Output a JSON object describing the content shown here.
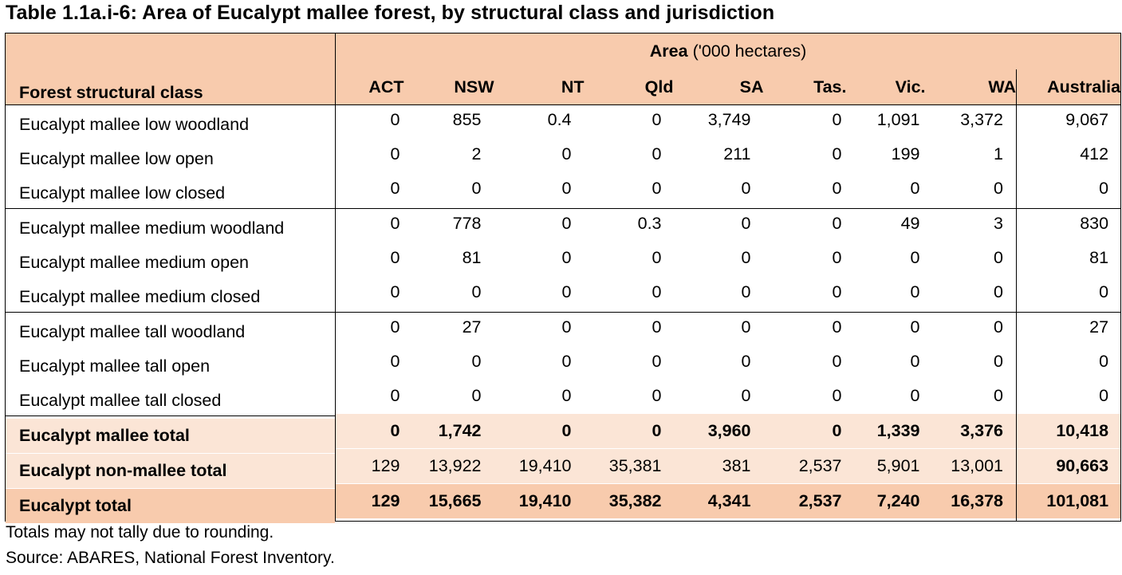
{
  "title": "Table 1.1a.i-6: Area of Eucalypt mallee forest, by structural class and jurisdiction",
  "header": {
    "stub": "Forest structural class",
    "area_bold": "Area",
    "area_rest": " ('000 hectares)",
    "columns": [
      "ACT",
      "NSW",
      "NT",
      "Qld",
      "SA",
      "Tas.",
      "Vic.",
      "WA",
      "Australia"
    ]
  },
  "rows": [
    {
      "label": "Eucalypt mallee low woodland",
      "values": [
        "0",
        "855",
        "0.4",
        "0",
        "3,749",
        "0",
        "1,091",
        "3,372",
        "9,067"
      ]
    },
    {
      "label": "Eucalypt mallee low open",
      "values": [
        "0",
        "2",
        "0",
        "0",
        "211",
        "0",
        "199",
        "1",
        "412"
      ]
    },
    {
      "label": "Eucalypt mallee low closed",
      "values": [
        "0",
        "0",
        "0",
        "0",
        "0",
        "0",
        "0",
        "0",
        "0"
      ]
    },
    {
      "label": "Eucalypt mallee medium woodland",
      "values": [
        "0",
        "778",
        "0",
        "0.3",
        "0",
        "0",
        "49",
        "3",
        "830"
      ]
    },
    {
      "label": "Eucalypt mallee medium open",
      "values": [
        "0",
        "81",
        "0",
        "0",
        "0",
        "0",
        "0",
        "0",
        "81"
      ]
    },
    {
      "label": "Eucalypt mallee medium closed",
      "values": [
        "0",
        "0",
        "0",
        "0",
        "0",
        "0",
        "0",
        "0",
        "0"
      ]
    },
    {
      "label": "Eucalypt mallee tall woodland",
      "values": [
        "0",
        "27",
        "0",
        "0",
        "0",
        "0",
        "0",
        "0",
        "27"
      ]
    },
    {
      "label": "Eucalypt mallee tall open",
      "values": [
        "0",
        "0",
        "0",
        "0",
        "0",
        "0",
        "0",
        "0",
        "0"
      ]
    },
    {
      "label": "Eucalypt mallee tall closed",
      "values": [
        "0",
        "0",
        "0",
        "0",
        "0",
        "0",
        "0",
        "0",
        "0"
      ]
    }
  ],
  "totals": [
    {
      "label": "Eucalypt mallee total",
      "values": [
        "0",
        "1,742",
        "0",
        "0",
        "3,960",
        "0",
        "1,339",
        "3,376",
        "10,418"
      ]
    },
    {
      "label": "Eucalypt non-mallee total",
      "values": [
        "129",
        "13,922",
        "19,410",
        "35,381",
        "381",
        "2,537",
        "5,901",
        "13,001",
        "90,663"
      ]
    },
    {
      "label": "Eucalypt total",
      "values": [
        "129",
        "15,665",
        "19,410",
        "35,382",
        "4,341",
        "2,537",
        "7,240",
        "16,378",
        "101,081"
      ]
    }
  ],
  "notes": {
    "rounding": "Totals may not tally due to rounding.",
    "source": "Source: ABARES, National Forest Inventory."
  },
  "colors": {
    "header_bg": "#f8cbad",
    "subtotal_bg": "#fbe5d6",
    "border": "#000000"
  }
}
